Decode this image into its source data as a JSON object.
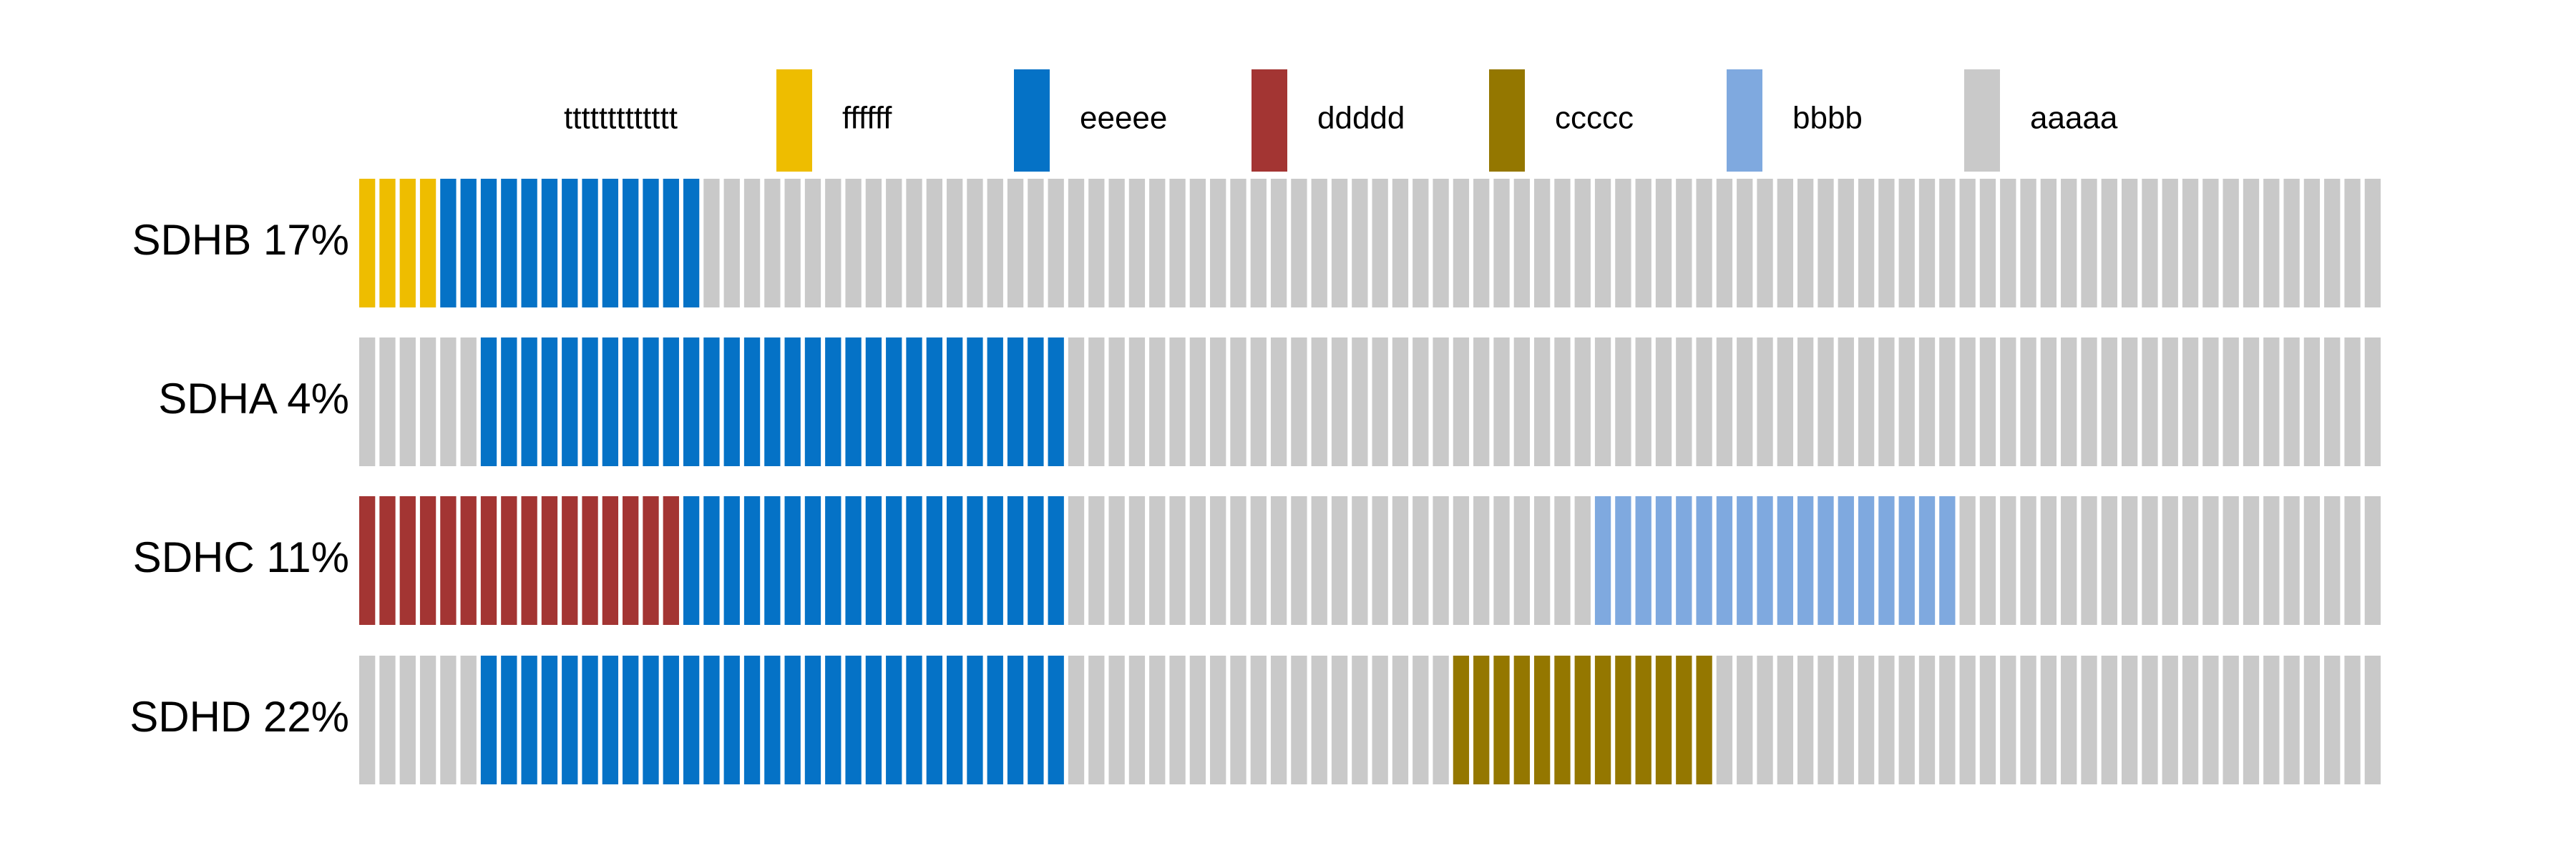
{
  "chart_data": {
    "type": "bar",
    "subtype": "segmented-waffle-rows",
    "title": "",
    "xlabel": "",
    "ylabel": "",
    "cells_per_row": 100,
    "legend": {
      "placement": "top",
      "title": "ttttttttttttt",
      "entries": [
        {
          "name": "ffffff",
          "color": "#EEBD00"
        },
        {
          "name": "eeeee",
          "color": "#0572C6"
        },
        {
          "name": "ddddd",
          "color": "#A33533"
        },
        {
          "name": "ccccc",
          "color": "#947700"
        },
        {
          "name": "bbbb",
          "color": "#7FA9DF"
        },
        {
          "name": "aaaaa",
          "color": "#C9C9C9"
        }
      ]
    },
    "rows": [
      {
        "label": "SDHB 17%",
        "segments": [
          {
            "category": "ffffff",
            "start": 0,
            "count": 4
          },
          {
            "category": "eeeee",
            "start": 4,
            "count": 13
          }
        ]
      },
      {
        "label": "SDHA 4%",
        "segments": [
          {
            "category": "eeeee",
            "start": 6,
            "count": 29
          }
        ]
      },
      {
        "label": "SDHC 11%",
        "segments": [
          {
            "category": "ddddd",
            "start": 0,
            "count": 16
          },
          {
            "category": "eeeee",
            "start": 16,
            "count": 19
          },
          {
            "category": "bbbb",
            "start": 61,
            "count": 18
          }
        ]
      },
      {
        "label": "SDHD 22%",
        "segments": [
          {
            "category": "eeeee",
            "start": 6,
            "count": 29
          },
          {
            "category": "ccccc",
            "start": 54,
            "count": 13
          }
        ]
      }
    ]
  }
}
